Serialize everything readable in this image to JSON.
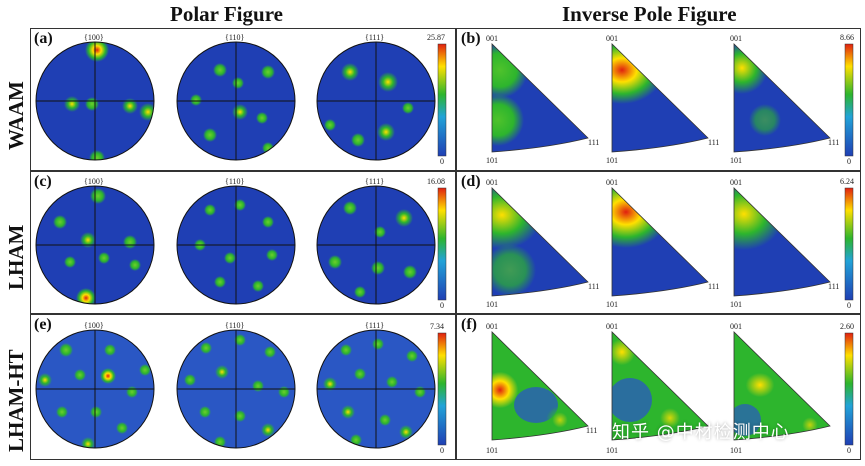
{
  "figure": {
    "headers": {
      "polar": "Polar Figure",
      "inverse": "Inverse Pole Figure"
    },
    "rows": [
      {
        "label": "WAAM",
        "pf_panel": "(a)",
        "ipf_panel": "(b)",
        "pf_max": "25.87",
        "pf_min": "0",
        "ipf_max": "8.66",
        "ipf_min": "0"
      },
      {
        "label": "LHAM",
        "pf_panel": "(c)",
        "ipf_panel": "(d)",
        "pf_max": "16.08",
        "pf_min": "0",
        "ipf_max": "6.24",
        "ipf_min": "0"
      },
      {
        "label": "LHAM-HT",
        "pf_panel": "(e)",
        "ipf_panel": "(f)",
        "pf_max": "7.34",
        "pf_min": "0",
        "ipf_max": "2.60",
        "ipf_min": "0"
      }
    ],
    "pf_titles": [
      "{100}",
      "{110}",
      "{111}"
    ],
    "ipf_corners": {
      "top": "001",
      "bottom_left": "101",
      "right": "111"
    },
    "watermark": "知乎 @中材检测中心",
    "colors": {
      "low": "#1f3fb4",
      "mid": "#2db52d",
      "high": "#ffe000",
      "max": "#e02010"
    }
  }
}
